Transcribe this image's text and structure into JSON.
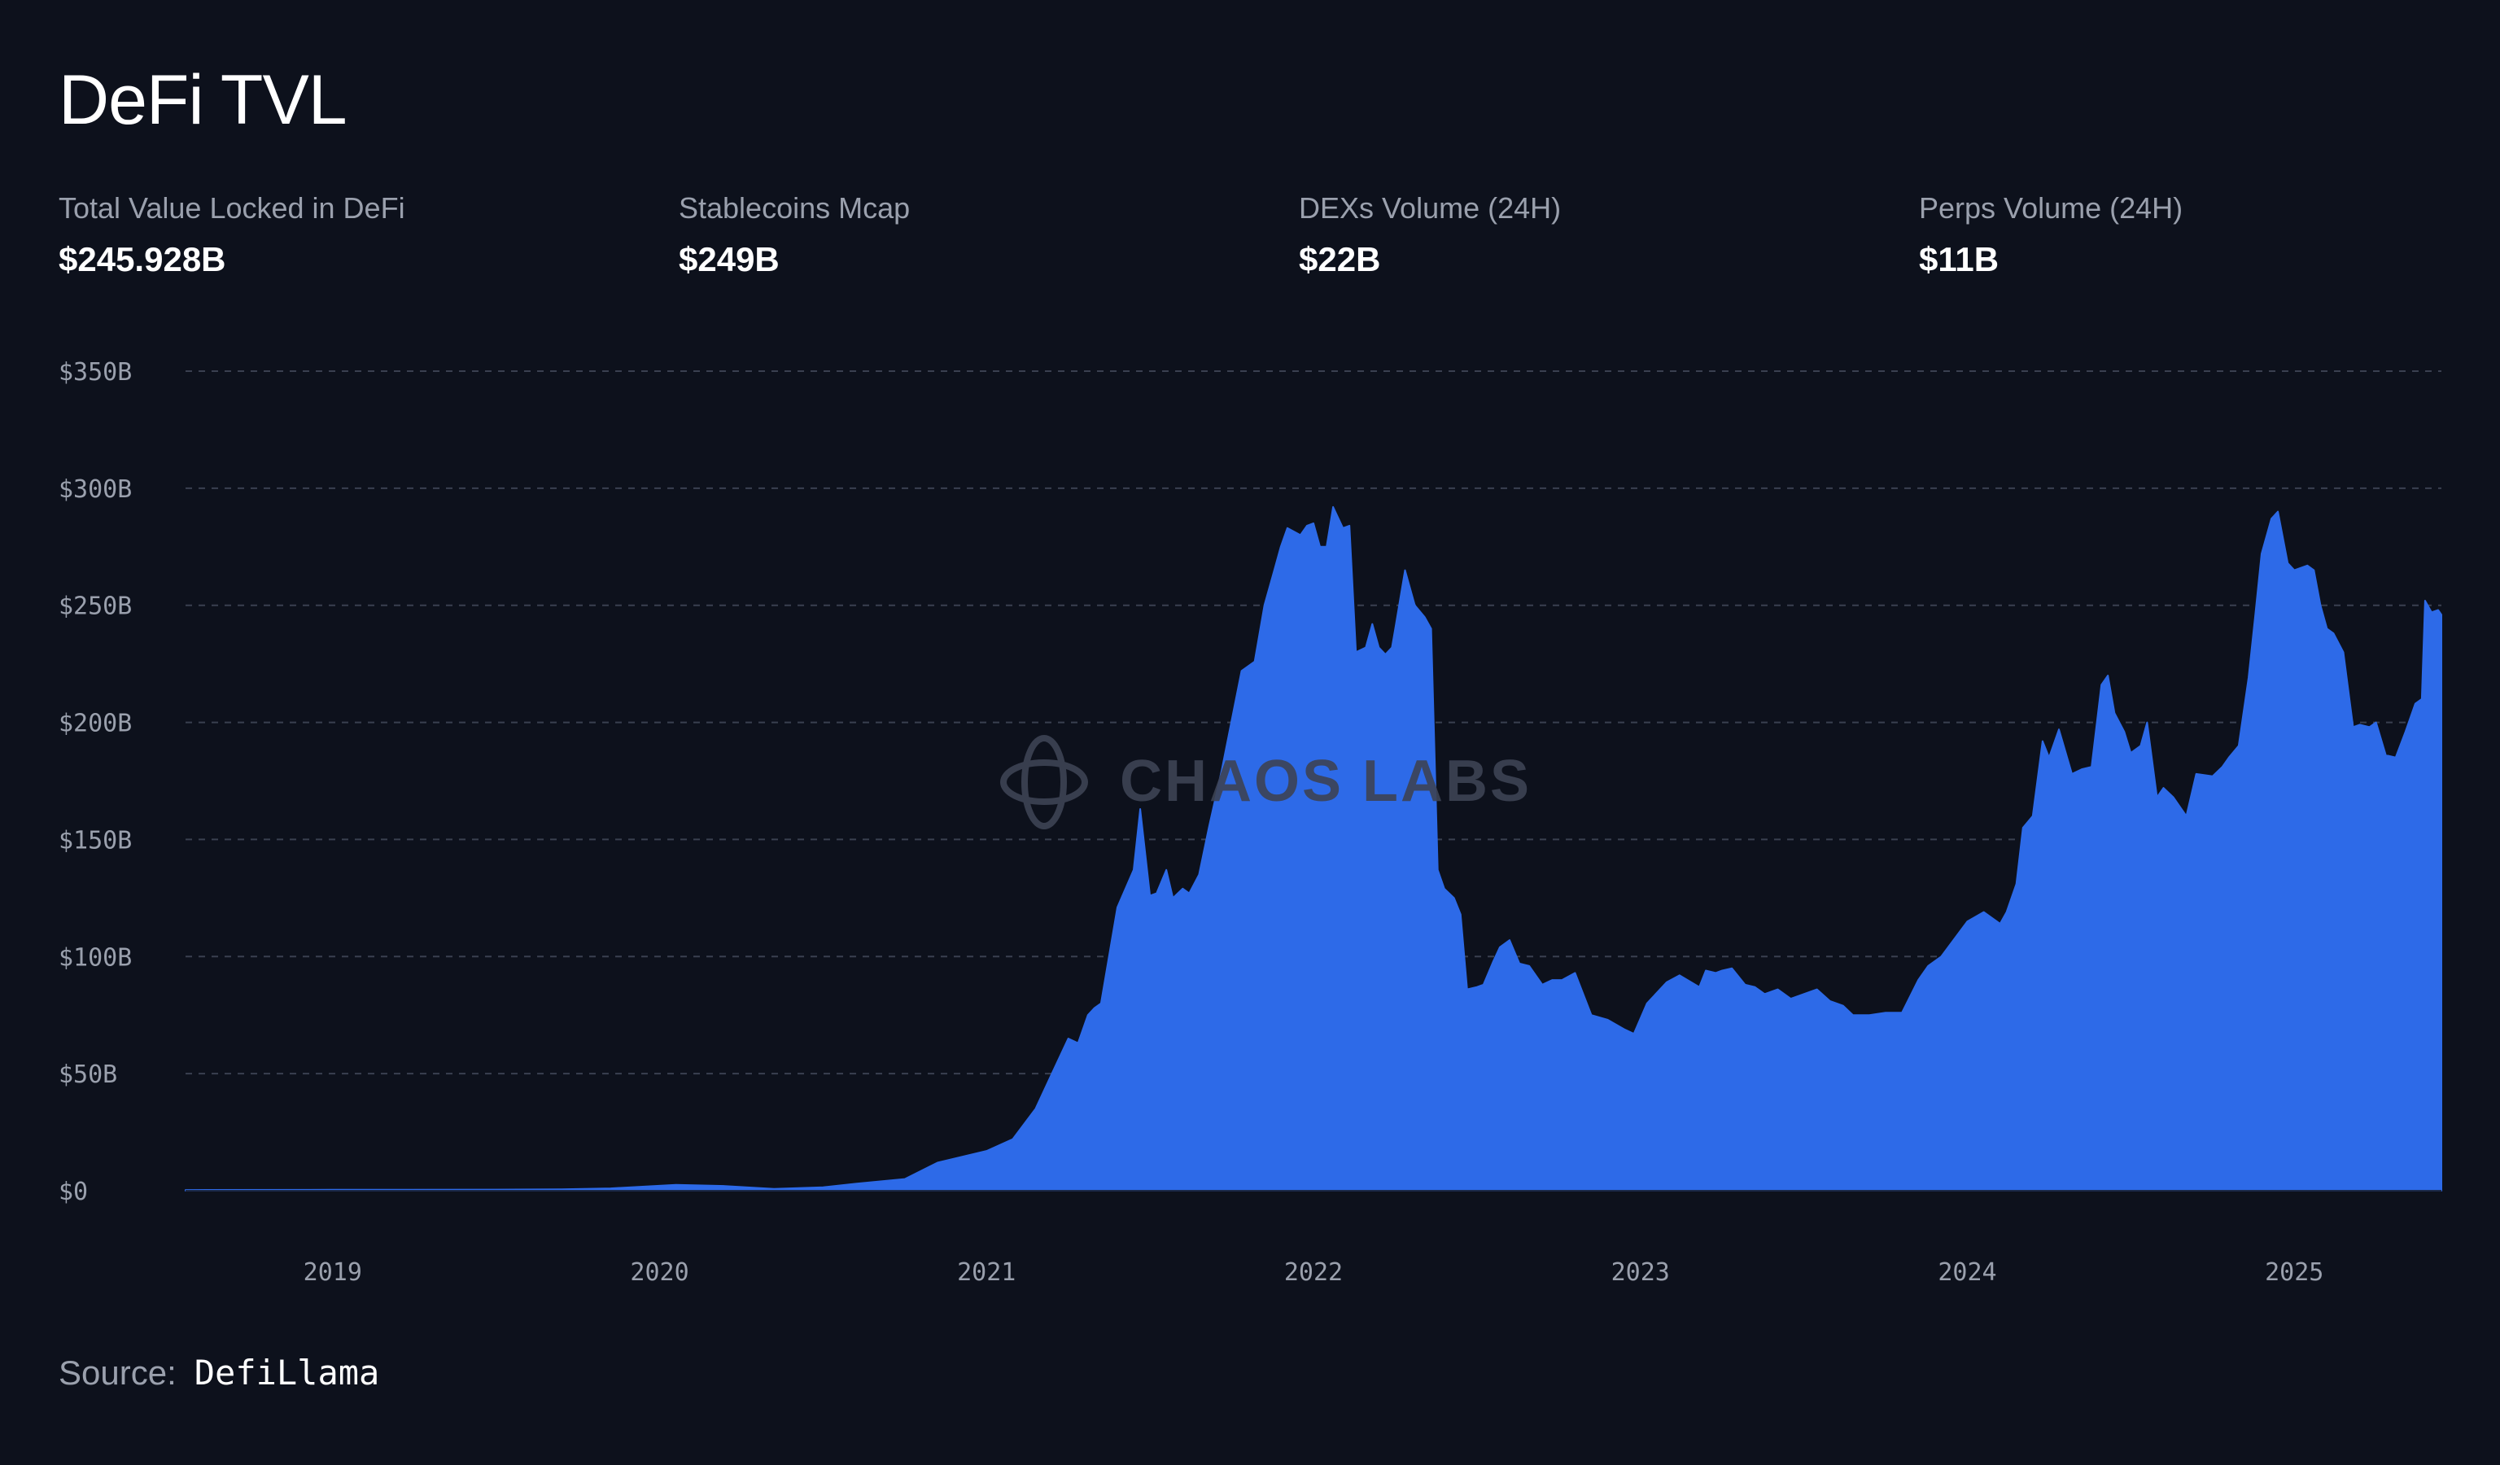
{
  "header": {
    "title": "DeFi TVL"
  },
  "stats": [
    {
      "label": "Total Value Locked in DeFi",
      "value": "$245.928B"
    },
    {
      "label": "Stablecoins Mcap",
      "value": "$249B"
    },
    {
      "label": "DEXs Volume (24H)",
      "value": "$22B"
    },
    {
      "label": "Perps Volume (24H)",
      "value": "$11B"
    }
  ],
  "watermark": {
    "text": "CHAOS LABS",
    "icon": "chaos-labs-logo-icon"
  },
  "source": {
    "label": "Source:",
    "value": "DefiLlama"
  },
  "colors": {
    "background": "#0d111c",
    "area_fill": "#2d6ae8",
    "grid": "#3a4050",
    "axis_text": "#9aa0ad"
  },
  "chart_data": {
    "type": "area",
    "title": "",
    "xlabel": "",
    "ylabel": "",
    "ylim": [
      0,
      350
    ],
    "y_unit": "B USD",
    "y_ticks": [
      0,
      50,
      100,
      150,
      200,
      250,
      300,
      350
    ],
    "y_tick_labels": [
      "$0",
      "$50B",
      "$100B",
      "$150B",
      "$200B",
      "$250B",
      "$300B",
      "$350B"
    ],
    "x_ticks": [
      2019,
      2020,
      2021,
      2022,
      2023,
      2024,
      2025
    ],
    "x_tick_labels": [
      "2019",
      "2020",
      "2021",
      "2022",
      "2023",
      "2024",
      "2025"
    ],
    "x_range": [
      2018.55,
      2025.45
    ],
    "grid": "horizontal dashed",
    "legend": "none",
    "series": [
      {
        "x": [
          2018.55,
          2019.0,
          2019.5,
          2019.7,
          2019.85,
          2020.05,
          2020.2,
          2020.35,
          2020.5,
          2020.6,
          2020.75,
          2020.85,
          2021.0,
          2021.08,
          2021.15,
          2021.2,
          2021.25,
          2021.28,
          2021.31,
          2021.33,
          2021.35,
          2021.4,
          2021.45,
          2021.47,
          2021.5,
          2021.52,
          2021.55,
          2021.57,
          2021.6,
          2021.62,
          2021.65,
          2021.68,
          2021.72,
          2021.78,
          2021.82,
          2021.85,
          2021.88,
          2021.9,
          2021.92,
          2021.96,
          2021.98,
          2022.0,
          2022.02,
          2022.04,
          2022.06,
          2022.09,
          2022.11,
          2022.13,
          2022.16,
          2022.18,
          2022.2,
          2022.22,
          2022.24,
          2022.25,
          2022.28,
          2022.31,
          2022.34,
          2022.36,
          2022.38,
          2022.4,
          2022.43,
          2022.45,
          2022.47,
          2022.5,
          2022.52,
          2022.55,
          2022.57,
          2022.6,
          2022.63,
          2022.66,
          2022.7,
          2022.73,
          2022.76,
          2022.8,
          2022.85,
          2022.9,
          2022.95,
          2022.98,
          2023.02,
          2023.08,
          2023.12,
          2023.18,
          2023.2,
          2023.23,
          2023.25,
          2023.28,
          2023.32,
          2023.35,
          2023.38,
          2023.42,
          2023.46,
          2023.5,
          2023.54,
          2023.58,
          2023.62,
          2023.65,
          2023.7,
          2023.75,
          2023.8,
          2023.85,
          2023.88,
          2023.92,
          2024.0,
          2024.05,
          2024.1,
          2024.12,
          2024.15,
          2024.17,
          2024.2,
          2024.23,
          2024.25,
          2024.28,
          2024.32,
          2024.35,
          2024.38,
          2024.41,
          2024.43,
          2024.45,
          2024.48,
          2024.5,
          2024.53,
          2024.55,
          2024.58,
          2024.6,
          2024.63,
          2024.67,
          2024.7,
          2024.75,
          2024.78,
          2024.8,
          2024.83,
          2024.86,
          2024.88,
          2024.9,
          2024.93,
          2024.95,
          2024.98,
          2025.0,
          2025.02,
          2025.04,
          2025.06,
          2025.08,
          2025.1,
          2025.12,
          2025.15,
          2025.18,
          2025.2,
          2025.23,
          2025.25,
          2025.28,
          2025.31,
          2025.34,
          2025.37,
          2025.39,
          2025.4,
          2025.42,
          2025.44,
          2025.45
        ],
        "y": [
          0.3,
          0.4,
          0.5,
          0.6,
          1.0,
          2.5,
          2.0,
          0.8,
          1.5,
          3.0,
          5.0,
          12.0,
          17.0,
          22.0,
          35.0,
          50.0,
          65.0,
          63.0,
          75.0,
          78.0,
          80.0,
          121.0,
          137.0,
          163.0,
          126.0,
          127.0,
          137.0,
          125.0,
          129.0,
          127.0,
          135.0,
          155.0,
          180.0,
          222.0,
          226.0,
          250.0,
          265.0,
          275.0,
          283.0,
          280.0,
          284.0,
          285.0,
          275.0,
          275.0,
          292.0,
          283.0,
          284.0,
          230.0,
          232.0,
          242.0,
          232.0,
          229.0,
          232.0,
          240.0,
          265.0,
          250.0,
          245.0,
          240.0,
          137.0,
          129.0,
          125.0,
          118.0,
          86.0,
          87.0,
          88.0,
          98.0,
          104.0,
          107.0,
          97.0,
          96.0,
          88.0,
          90.0,
          90.0,
          93.0,
          75.0,
          73.0,
          69.0,
          67.0,
          80.0,
          89.0,
          92.0,
          87.0,
          94.0,
          93.0,
          94.0,
          95.0,
          88.0,
          87.0,
          84.0,
          86.0,
          82.0,
          84.0,
          86.0,
          81.0,
          79.0,
          75.0,
          75.0,
          76.0,
          76.0,
          90.0,
          96.0,
          100.0,
          115.0,
          119.0,
          114.0,
          119.0,
          131.0,
          155.0,
          160.0,
          192.0,
          185.0,
          197.0,
          178.0,
          180.0,
          181.0,
          216.0,
          220.0,
          204.0,
          196.0,
          187.0,
          190.0,
          200.0,
          168.0,
          172.0,
          168.0,
          160.0,
          178.0,
          177.0,
          181.0,
          185.0,
          190.0,
          219.0,
          245.0,
          272.0,
          287.0,
          290.0,
          268.0,
          265.0,
          266.0,
          267.0,
          265.0,
          250.0,
          240.0,
          238.0,
          230.0,
          198.0,
          199.0,
          198.0,
          200.0,
          186.0,
          185.0,
          196.0,
          208.0,
          210.0,
          252.0,
          247.0,
          248.0,
          246.0
        ]
      }
    ]
  }
}
